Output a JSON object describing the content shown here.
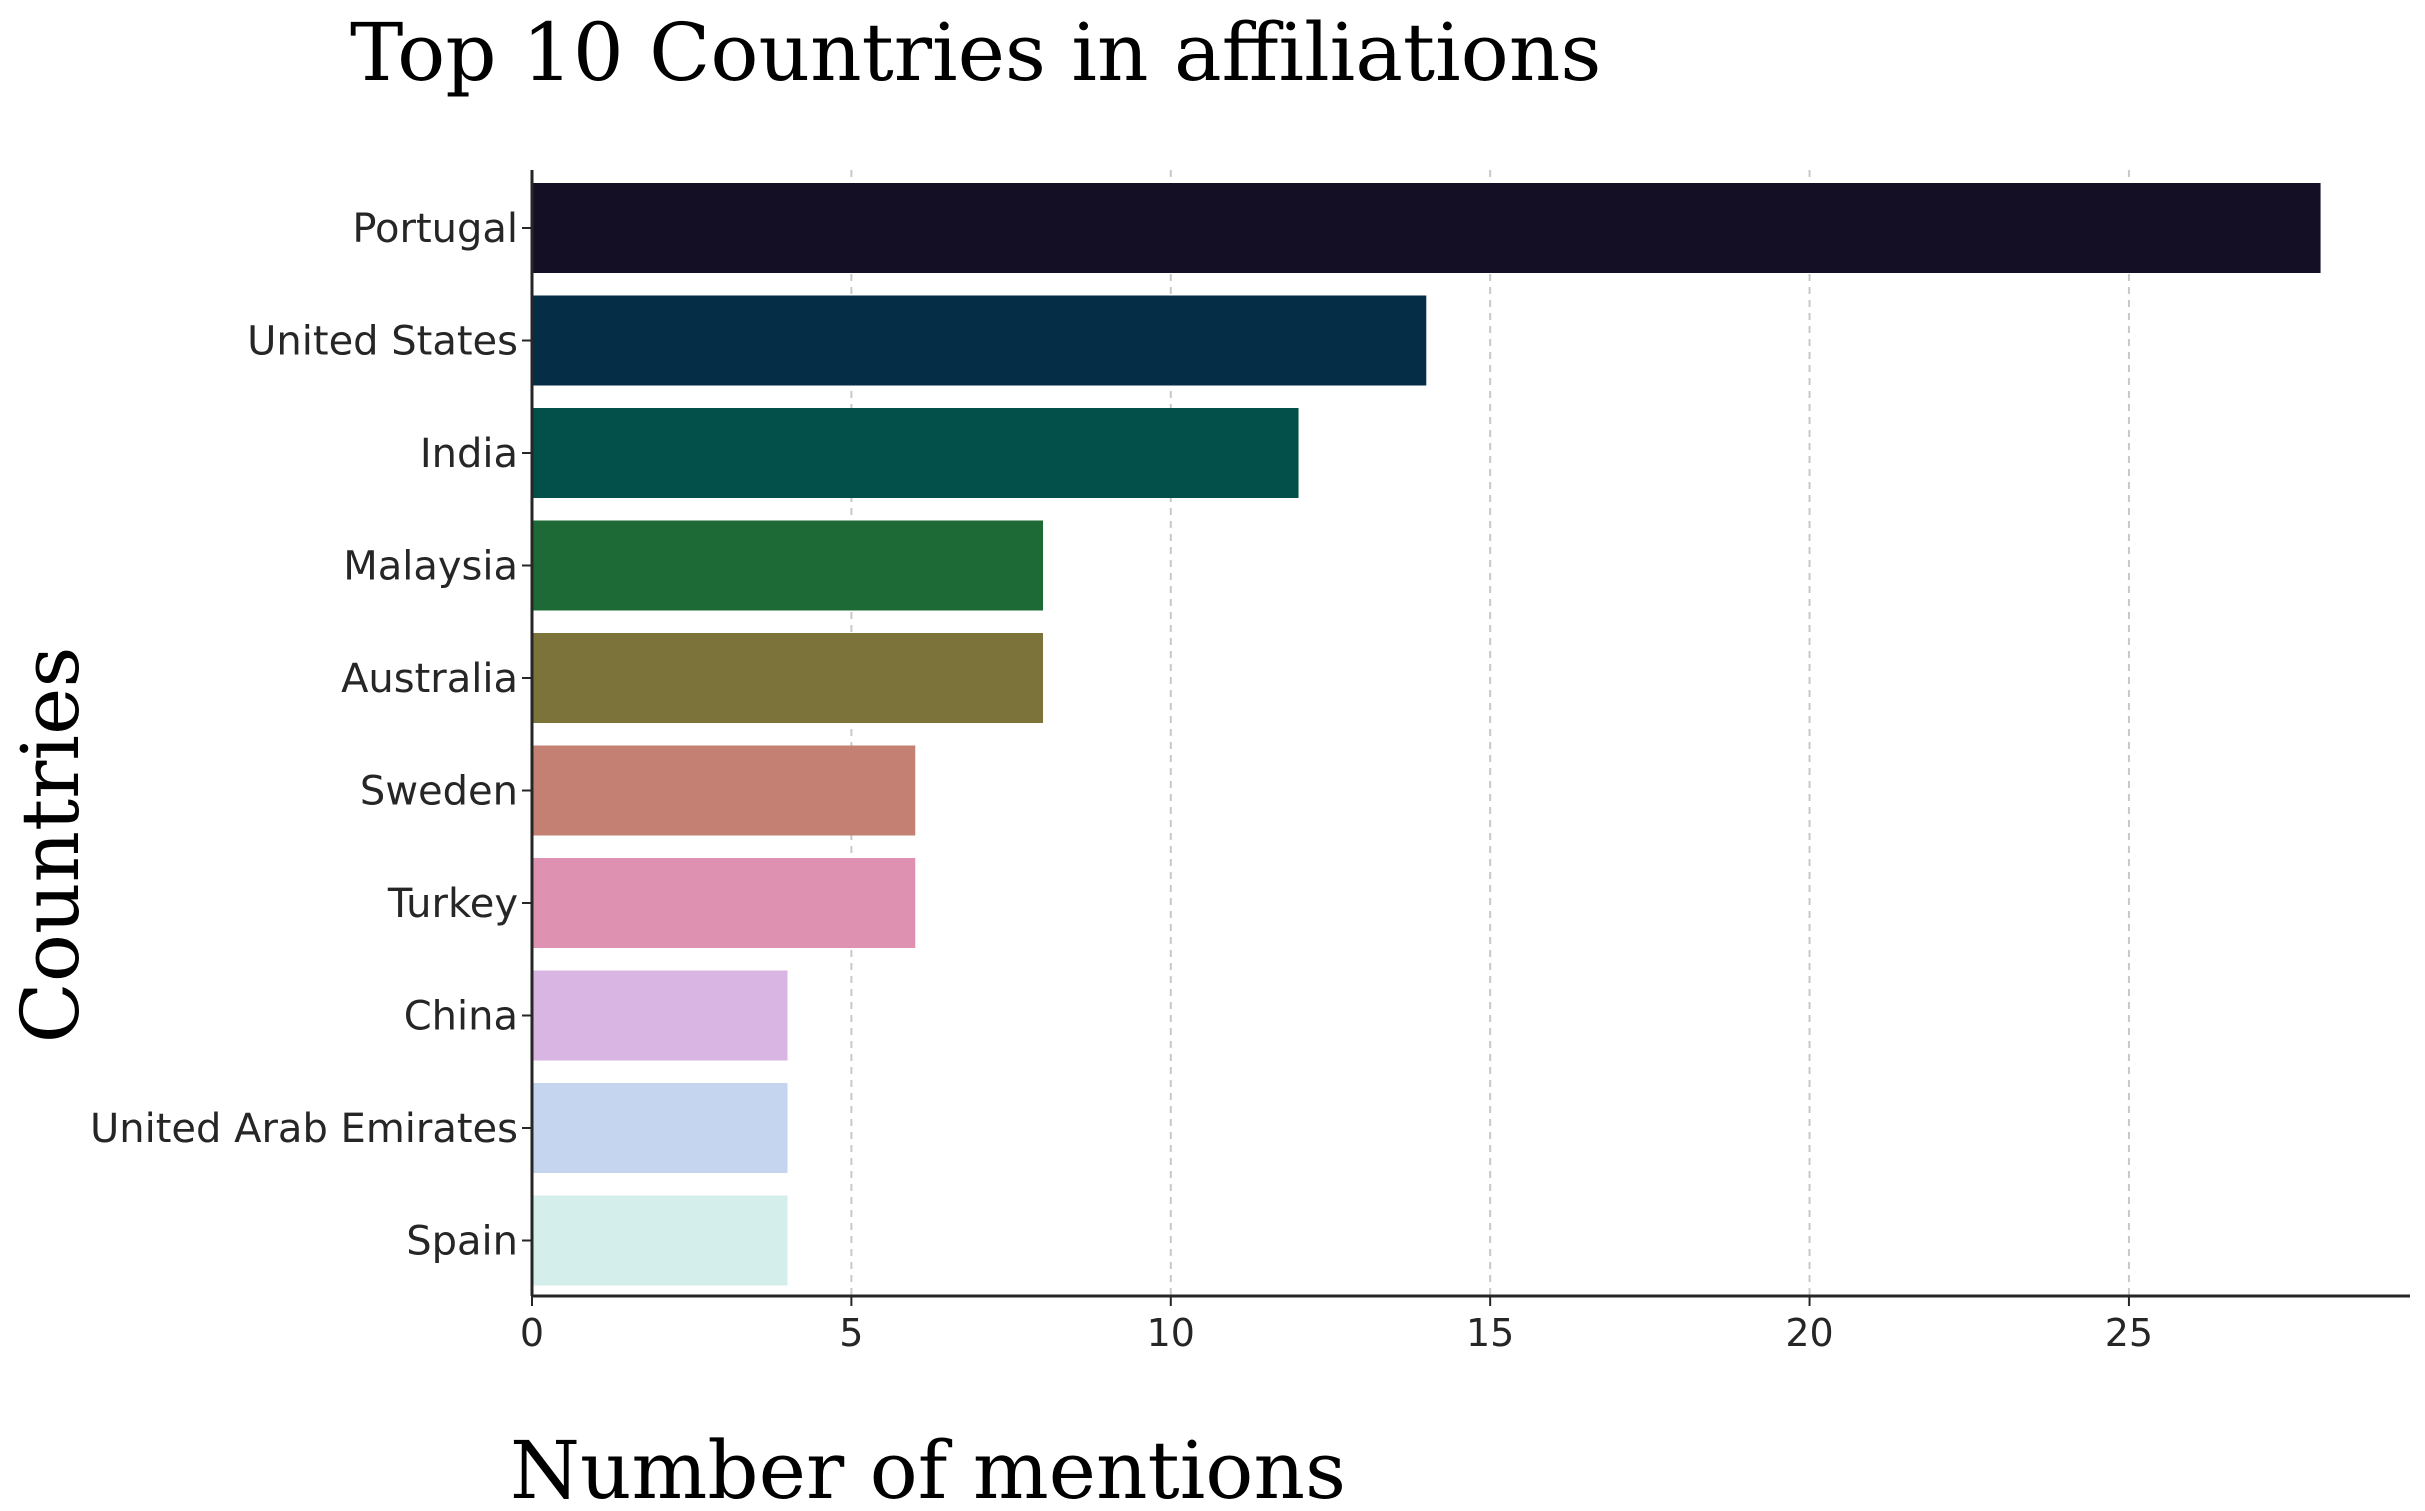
{
  "chart_data": {
    "type": "bar",
    "orientation": "horizontal",
    "title": "Top 10 Countries in affiliations",
    "xlabel": "Number of mentions",
    "ylabel": "Countries",
    "categories": [
      "Portugal",
      "United States",
      "India",
      "Malaysia",
      "Australia",
      "Sweden",
      "Turkey",
      "China",
      "United Arab Emirates",
      "Spain"
    ],
    "values": [
      28,
      14,
      12,
      8,
      8,
      6,
      6,
      4,
      4,
      4
    ],
    "colors": [
      "#150f25",
      "#052d45",
      "#03504a",
      "#1e6a36",
      "#7b7339",
      "#c38073",
      "#df91b2",
      "#d8b5e3",
      "#c5d5ef",
      "#d4eeec"
    ],
    "xlim": [
      0,
      29.4
    ],
    "xticks": [
      0,
      5,
      10,
      15,
      20,
      25
    ],
    "grid": "x-dashed",
    "legend": "none"
  }
}
